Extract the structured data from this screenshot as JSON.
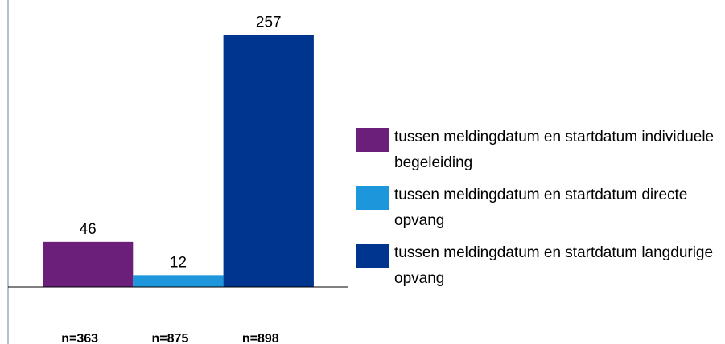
{
  "chart_data": {
    "type": "bar",
    "categories": [
      "n=363",
      "n=875",
      "n=898"
    ],
    "series": [
      {
        "name": "tussen meldingdatum en startdatum individuele begeleiding",
        "color": "#6c1f7a",
        "values": [
          46,
          null,
          null
        ]
      },
      {
        "name": "tussen meldingdatum en startdatum directe opvang",
        "color": "#1e96dc",
        "values": [
          null,
          12,
          null
        ]
      },
      {
        "name": "tussen meldingdatum en startdatum langdurige opvang",
        "color": "#00358f",
        "values": [
          null,
          null,
          257
        ]
      }
    ],
    "ylim": [
      0,
      290
    ]
  }
}
